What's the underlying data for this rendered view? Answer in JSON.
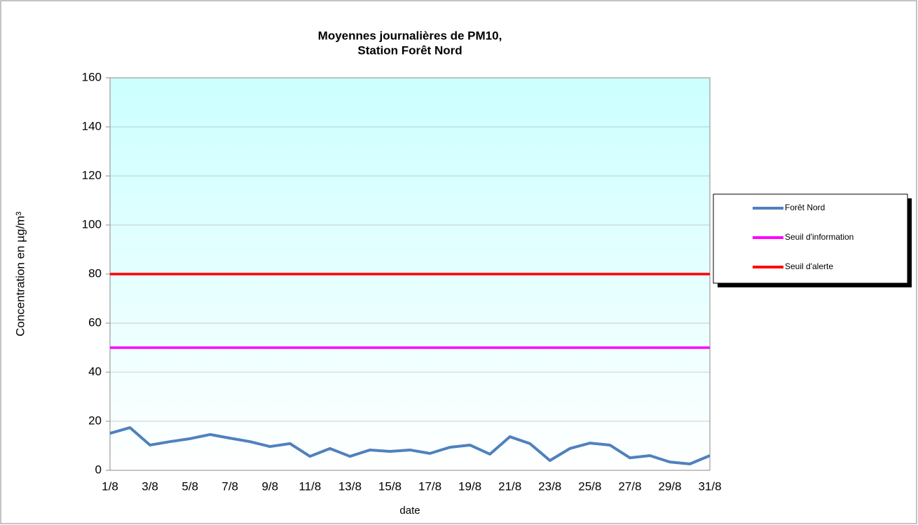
{
  "chart_data": {
    "type": "line",
    "title": [
      "Moyennes journalières de PM10,",
      "Station Forêt Nord"
    ],
    "y_label": "Concentration en µg/m³",
    "x_label": "date",
    "categories": [
      "1/8",
      null,
      "3/8",
      null,
      "5/8",
      null,
      "7/8",
      null,
      "9/8",
      null,
      "11/8",
      null,
      "13/8",
      null,
      "15/8",
      null,
      "17/8",
      null,
      "19/8",
      null,
      "21/8",
      null,
      "23/8",
      null,
      "25/8",
      null,
      "27/8",
      null,
      "29/8",
      null,
      "31/8"
    ],
    "series": [
      {
        "name": "Forêt Nord",
        "color": "#4f81bd",
        "values": [
          15.1,
          17.4,
          10.3,
          11.7,
          12.9,
          14.6,
          13.1,
          11.7,
          9.7,
          10.9,
          5.7,
          8.9,
          5.7,
          8.3,
          7.7,
          8.3,
          6.9,
          9.4,
          10.3,
          6.6,
          13.7,
          10.9,
          4,
          8.9,
          11.1,
          10.3,
          5.1,
          6,
          3.4,
          2.6,
          6
        ]
      },
      {
        "name": "Seuil d'information",
        "color": "#ff00ff",
        "values": [
          50,
          50,
          50,
          50,
          50,
          50,
          50,
          50,
          50,
          50,
          50,
          50,
          50,
          50,
          50,
          50,
          50,
          50,
          50,
          50,
          50,
          50,
          50,
          50,
          50,
          50,
          50,
          50,
          50,
          50,
          50
        ]
      },
      {
        "name": "Seuil d'alerte",
        "color": "#ff0000",
        "values": [
          80,
          80,
          80,
          80,
          80,
          80,
          80,
          80,
          80,
          80,
          80,
          80,
          80,
          80,
          80,
          80,
          80,
          80,
          80,
          80,
          80,
          80,
          80,
          80,
          80,
          80,
          80,
          80,
          80,
          80,
          80
        ]
      }
    ],
    "ylim": [
      0,
      160
    ],
    "yticks": [
      0,
      20,
      40,
      60,
      80,
      100,
      120,
      140,
      160
    ],
    "grid": true,
    "legend": "right"
  }
}
